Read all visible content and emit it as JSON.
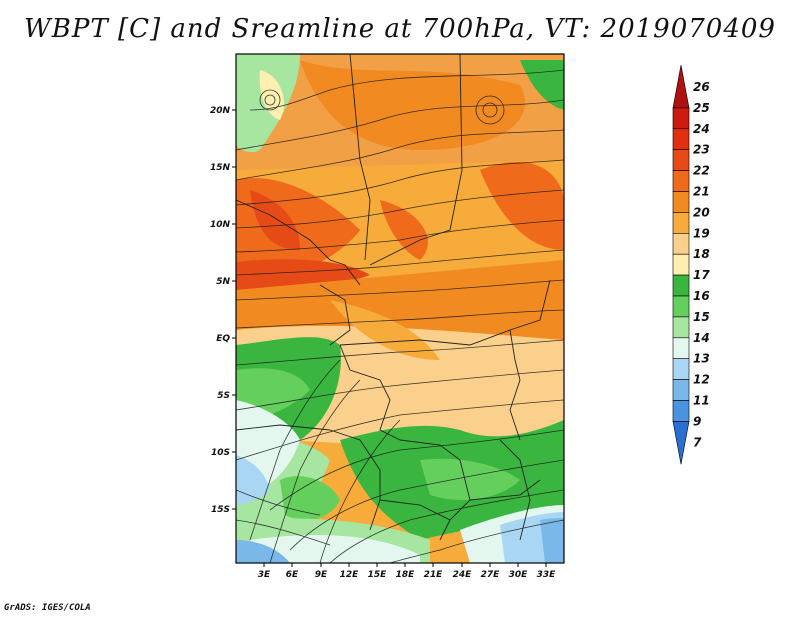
{
  "title": "WBPT [C] and Sreamline at 700hPa, VT: 2019070409",
  "credit": "GrADS: IGES/COLA",
  "map": {
    "lat_labels": [
      "20N",
      "15N",
      "10N",
      "5N",
      "EQ",
      "5S",
      "10S",
      "15S"
    ],
    "lon_labels": [
      "3E",
      "6E",
      "9E",
      "12E",
      "15E",
      "18E",
      "21E",
      "24E",
      "27E",
      "30E",
      "33E"
    ]
  },
  "colorbar": {
    "labels": [
      "26",
      "25",
      "24",
      "23",
      "22",
      "21",
      "20",
      "19",
      "18",
      "17",
      "16",
      "15",
      "14",
      "13",
      "12",
      "11",
      "9",
      "7"
    ],
    "colors": [
      "#b01010",
      "#cc1a10",
      "#e03010",
      "#e64a16",
      "#f06a1c",
      "#f28a22",
      "#f7ab3a",
      "#fbd08c",
      "#fcefb0",
      "#3ab53f",
      "#64cf5c",
      "#a6e6a0",
      "#e3f7ee",
      "#a9d6f2",
      "#7ab8ea",
      "#4a93de",
      "#2a70d2"
    ]
  }
}
